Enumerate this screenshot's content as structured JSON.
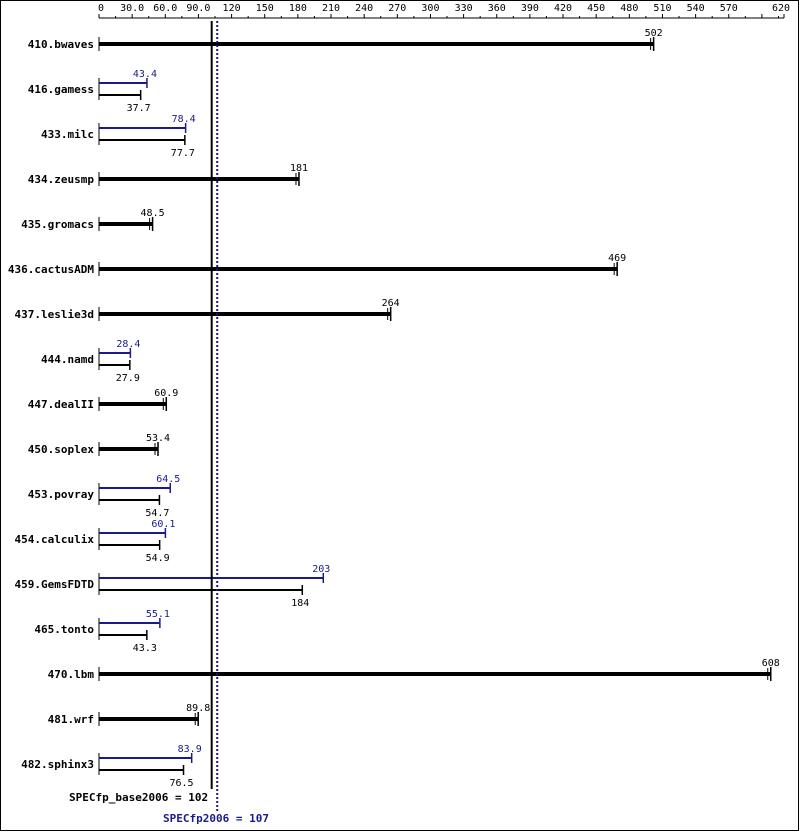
{
  "chart_data": {
    "type": "bar",
    "orientation": "horizontal",
    "xlim": [
      0,
      620
    ],
    "tick_labels": [
      "0",
      "30.0",
      "60.0",
      "90.0",
      "120",
      "150",
      "180",
      "210",
      "240",
      "270",
      "300",
      "330",
      "360",
      "390",
      "420",
      "450",
      "480",
      "510",
      "540",
      "570",
      "620"
    ],
    "tick_values": [
      0,
      30,
      60,
      90,
      120,
      150,
      180,
      210,
      240,
      270,
      300,
      330,
      360,
      390,
      420,
      450,
      480,
      510,
      540,
      570,
      620
    ],
    "colors": {
      "base": "#000000",
      "peak": "#1a1a8c"
    },
    "series": [
      {
        "key": "peak",
        "values": [
          null,
          43.4,
          78.4,
          null,
          null,
          null,
          null,
          28.4,
          null,
          null,
          64.5,
          60.1,
          203,
          55.1,
          null,
          null,
          83.9
        ]
      },
      {
        "key": "base",
        "values": [
          502,
          37.7,
          77.7,
          181,
          48.5,
          469,
          264,
          27.9,
          60.9,
          53.4,
          54.7,
          54.9,
          184,
          43.3,
          608,
          89.8,
          76.5
        ]
      }
    ],
    "benchmarks": [
      {
        "name": "410.bwaves",
        "base": 502,
        "base_label": "502",
        "peak": null,
        "peak_label": ""
      },
      {
        "name": "416.gamess",
        "base": 37.7,
        "base_label": "37.7",
        "peak": 43.4,
        "peak_label": "43.4"
      },
      {
        "name": "433.milc",
        "base": 77.7,
        "base_label": "77.7",
        "peak": 78.4,
        "peak_label": "78.4"
      },
      {
        "name": "434.zeusmp",
        "base": 181,
        "base_label": "181",
        "peak": null,
        "peak_label": ""
      },
      {
        "name": "435.gromacs",
        "base": 48.5,
        "base_label": "48.5",
        "peak": null,
        "peak_label": ""
      },
      {
        "name": "436.cactusADM",
        "base": 469,
        "base_label": "469",
        "peak": null,
        "peak_label": ""
      },
      {
        "name": "437.leslie3d",
        "base": 264,
        "base_label": "264",
        "peak": null,
        "peak_label": ""
      },
      {
        "name": "444.namd",
        "base": 27.9,
        "base_label": "27.9",
        "peak": 28.4,
        "peak_label": "28.4"
      },
      {
        "name": "447.dealII",
        "base": 60.9,
        "base_label": "60.9",
        "peak": null,
        "peak_label": ""
      },
      {
        "name": "450.soplex",
        "base": 53.4,
        "base_label": "53.4",
        "peak": null,
        "peak_label": ""
      },
      {
        "name": "453.povray",
        "base": 54.7,
        "base_label": "54.7",
        "peak": 64.5,
        "peak_label": "64.5"
      },
      {
        "name": "454.calculix",
        "base": 54.9,
        "base_label": "54.9",
        "peak": 60.1,
        "peak_label": "60.1"
      },
      {
        "name": "459.GemsFDTD",
        "base": 184,
        "base_label": "184",
        "peak": 203,
        "peak_label": "203"
      },
      {
        "name": "465.tonto",
        "base": 43.3,
        "base_label": "43.3",
        "peak": 55.1,
        "peak_label": "55.1"
      },
      {
        "name": "470.lbm",
        "base": 608,
        "base_label": "608",
        "peak": null,
        "peak_label": ""
      },
      {
        "name": "481.wrf",
        "base": 89.8,
        "base_label": "89.8",
        "peak": null,
        "peak_label": ""
      },
      {
        "name": "482.sphinx3",
        "base": 76.5,
        "base_label": "76.5",
        "peak": 83.9,
        "peak_label": "83.9"
      }
    ],
    "reference_lines": [
      {
        "value": 102,
        "label": "SPECfp_base2006 = 102",
        "style": "solid",
        "color": "#000000"
      },
      {
        "value": 107,
        "label": "SPECfp2006 = 107",
        "style": "dotted",
        "color": "#1a1a8c"
      }
    ]
  }
}
